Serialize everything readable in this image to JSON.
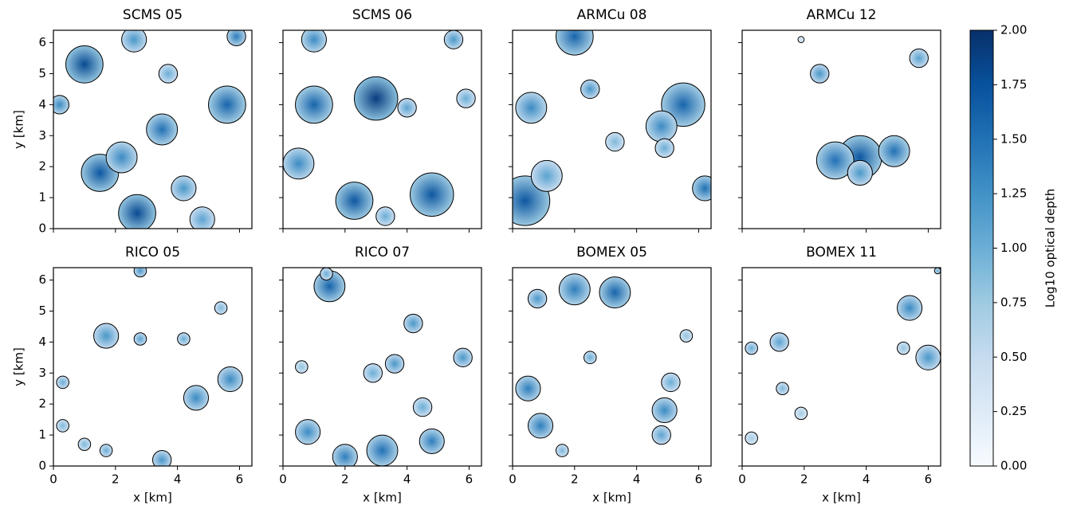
{
  "chart_data": [
    {
      "type": "heatmap",
      "title": "SCMS 05",
      "ylabel": "y [km]",
      "xlim": [
        0,
        6.4
      ],
      "ylim": [
        0,
        6.4
      ],
      "xticks": [
        0,
        2,
        4,
        6
      ],
      "yticks": [
        0,
        1,
        2,
        3,
        4,
        5,
        6
      ],
      "clouds": {
        "x": [
          1,
          1.5,
          2.7,
          3.5,
          5.6,
          2.2,
          4.2,
          5.9,
          0.2,
          4.8,
          2.6,
          3.7
        ],
        "y": [
          5.3,
          1.8,
          0.5,
          3.2,
          4.0,
          2.3,
          1.3,
          6.2,
          4.0,
          0.3,
          6.1,
          5.0
        ],
        "size": [
          0.6,
          0.6,
          0.6,
          0.5,
          0.6,
          0.5,
          0.4,
          0.3,
          0.3,
          0.4,
          0.4,
          0.3
        ],
        "values": [
          1.8,
          1.7,
          1.8,
          1.5,
          1.6,
          1.3,
          1.2,
          1.4,
          1.3,
          1.1,
          1.2,
          1.0
        ]
      }
    },
    {
      "type": "heatmap",
      "title": "SCMS 06",
      "xlim": [
        0,
        6.4
      ],
      "ylim": [
        0,
        6.4
      ],
      "xticks": [
        0,
        2,
        4,
        6
      ],
      "yticks": [
        0,
        1,
        2,
        3,
        4,
        5,
        6
      ],
      "clouds": {
        "x": [
          3.0,
          1.0,
          2.3,
          4.8,
          0.5,
          4.0,
          1.0,
          5.5,
          3.3,
          5.9
        ],
        "y": [
          4.2,
          4.0,
          0.9,
          1.1,
          2.1,
          3.9,
          6.1,
          6.1,
          0.4,
          4.2
        ],
        "size": [
          0.7,
          0.6,
          0.6,
          0.7,
          0.5,
          0.3,
          0.4,
          0.3,
          0.3,
          0.3
        ],
        "values": [
          1.9,
          1.6,
          1.7,
          1.7,
          1.3,
          1.1,
          1.3,
          1.2,
          1.0,
          1.0
        ]
      }
    },
    {
      "type": "heatmap",
      "title": "ARMCu 08",
      "xlim": [
        0,
        6.4
      ],
      "ylim": [
        0,
        6.4
      ],
      "xticks": [
        0,
        2,
        4,
        6
      ],
      "yticks": [
        0,
        1,
        2,
        3,
        4,
        5,
        6
      ],
      "clouds": {
        "x": [
          0.4,
          5.5,
          2.0,
          0.6,
          2.5,
          4.8,
          1.1,
          3.3,
          6.2,
          4.9
        ],
        "y": [
          0.9,
          4.0,
          6.2,
          3.9,
          4.5,
          3.3,
          1.7,
          2.8,
          1.3,
          2.6
        ],
        "size": [
          0.8,
          0.7,
          0.6,
          0.5,
          0.3,
          0.5,
          0.5,
          0.3,
          0.4,
          0.3
        ],
        "values": [
          1.7,
          1.6,
          1.6,
          1.3,
          1.2,
          1.3,
          1.1,
          0.9,
          1.5,
          1.0
        ]
      }
    },
    {
      "type": "heatmap",
      "title": "ARMCu 12",
      "xlim": [
        0,
        6.4
      ],
      "ylim": [
        0,
        6.4
      ],
      "xticks": [
        0,
        2,
        4,
        6
      ],
      "yticks": [
        0,
        1,
        2,
        3,
        4,
        5,
        6
      ],
      "clouds": {
        "x": [
          3.8,
          3.0,
          4.9,
          3.8,
          5.7,
          2.5,
          1.9
        ],
        "y": [
          2.3,
          2.2,
          2.5,
          1.8,
          5.5,
          5.0,
          6.1
        ],
        "size": [
          0.7,
          0.6,
          0.5,
          0.4,
          0.3,
          0.3,
          0.1
        ],
        "values": [
          1.7,
          1.5,
          1.5,
          1.2,
          1.1,
          1.2,
          0.5
        ]
      }
    },
    {
      "type": "heatmap",
      "title": "RICO 05",
      "xlabel": "x [km]",
      "ylabel": "y [km]",
      "xlim": [
        0,
        6.4
      ],
      "ylim": [
        0,
        6.4
      ],
      "xticks": [
        0,
        2,
        4,
        6
      ],
      "yticks": [
        0,
        1,
        2,
        3,
        4,
        5,
        6
      ],
      "clouds": {
        "x": [
          1.7,
          4.6,
          5.7,
          2.8,
          0.3,
          3.5,
          5.4,
          1.0,
          2.8,
          4.2,
          1.7,
          0.3
        ],
        "y": [
          4.2,
          2.2,
          2.8,
          4.1,
          2.7,
          0.2,
          5.1,
          0.7,
          6.3,
          4.1,
          0.5,
          1.3
        ],
        "size": [
          0.4,
          0.4,
          0.4,
          0.2,
          0.2,
          0.3,
          0.2,
          0.2,
          0.2,
          0.2,
          0.2,
          0.2
        ],
        "values": [
          1.2,
          1.3,
          1.3,
          1.1,
          1.0,
          1.2,
          0.9,
          0.9,
          1.2,
          1.0,
          1.0,
          0.9
        ]
      }
    },
    {
      "type": "heatmap",
      "title": "RICO 07",
      "xlabel": "x [km]",
      "xlim": [
        0,
        6.4
      ],
      "ylim": [
        0,
        6.4
      ],
      "xticks": [
        0,
        2,
        4,
        6
      ],
      "yticks": [
        0,
        1,
        2,
        3,
        4,
        5,
        6
      ],
      "clouds": {
        "x": [
          1.5,
          3.2,
          2.0,
          0.8,
          3.6,
          4.8,
          5.8,
          4.2,
          2.9,
          4.5,
          1.4,
          0.6
        ],
        "y": [
          5.8,
          0.5,
          0.3,
          1.1,
          3.3,
          0.8,
          3.5,
          4.6,
          3.0,
          1.9,
          6.2,
          3.2
        ],
        "size": [
          0.5,
          0.5,
          0.4,
          0.4,
          0.3,
          0.4,
          0.3,
          0.3,
          0.3,
          0.3,
          0.2,
          0.2
        ],
        "values": [
          1.6,
          1.5,
          1.4,
          1.3,
          1.2,
          1.4,
          1.2,
          1.2,
          1.0,
          1.0,
          1.0,
          0.8
        ]
      }
    },
    {
      "type": "heatmap",
      "title": "BOMEX 05",
      "xlabel": "x [km]",
      "xlim": [
        0,
        6.4
      ],
      "ylim": [
        0,
        6.4
      ],
      "xticks": [
        0,
        2,
        4,
        6
      ],
      "yticks": [
        0,
        1,
        2,
        3,
        4,
        5,
        6
      ],
      "clouds": {
        "x": [
          3.3,
          2.0,
          0.5,
          0.9,
          4.9,
          0.8,
          5.1,
          4.8,
          2.5,
          1.6,
          5.6
        ],
        "y": [
          5.6,
          5.7,
          2.5,
          1.3,
          1.8,
          5.4,
          2.7,
          1.0,
          3.5,
          0.5,
          4.2
        ],
        "size": [
          0.5,
          0.5,
          0.4,
          0.4,
          0.4,
          0.3,
          0.3,
          0.3,
          0.2,
          0.2,
          0.2
        ],
        "values": [
          1.6,
          1.4,
          1.4,
          1.4,
          1.3,
          1.2,
          1.0,
          1.1,
          1.0,
          0.9,
          0.8
        ]
      }
    },
    {
      "type": "heatmap",
      "title": "BOMEX 11",
      "xlabel": "x [km]",
      "xlim": [
        0,
        6.4
      ],
      "ylim": [
        0,
        6.4
      ],
      "xticks": [
        0,
        2,
        4,
        6
      ],
      "yticks": [
        0,
        1,
        2,
        3,
        4,
        5,
        6
      ],
      "clouds": {
        "x": [
          5.4,
          6.0,
          1.2,
          0.3,
          1.3,
          5.2,
          0.3,
          1.9,
          6.3
        ],
        "y": [
          5.1,
          3.5,
          4.0,
          3.8,
          2.5,
          3.8,
          0.9,
          1.7,
          6.3
        ],
        "size": [
          0.4,
          0.4,
          0.3,
          0.2,
          0.2,
          0.2,
          0.2,
          0.2,
          0.1
        ],
        "values": [
          1.3,
          1.2,
          1.1,
          1.0,
          0.9,
          0.8,
          0.7,
          0.7,
          1.0
        ]
      }
    }
  ],
  "colorbar": {
    "label": "Log10 optical depth",
    "lim": [
      0,
      2
    ],
    "ticks": [
      {
        "value": 0,
        "label": "0.00"
      },
      {
        "value": 0.25,
        "label": "0.25"
      },
      {
        "value": 0.5,
        "label": "0.50"
      },
      {
        "value": 0.75,
        "label": "0.75"
      },
      {
        "value": 1,
        "label": "1.00"
      },
      {
        "value": 1.25,
        "label": "1.25"
      },
      {
        "value": 1.5,
        "label": "1.50"
      },
      {
        "value": 1.75,
        "label": "1.75"
      },
      {
        "value": 2,
        "label": "2.00"
      }
    ],
    "colors": [
      "#f7fbff",
      "#deebf7",
      "#c6dbef",
      "#9ecae1",
      "#6baed6",
      "#4292c6",
      "#2171b5",
      "#08519c",
      "#08306b"
    ]
  }
}
